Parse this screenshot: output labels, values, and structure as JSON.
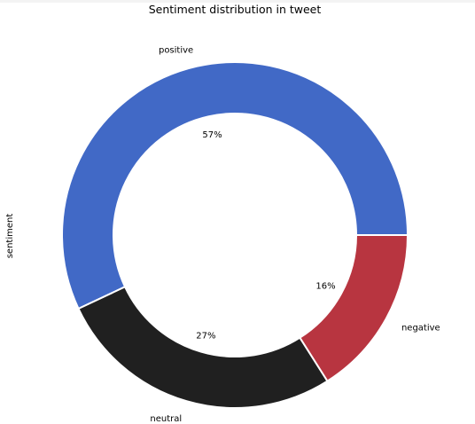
{
  "chart_data": {
    "type": "pie",
    "title": "Sentiment distribution in tweet",
    "ylabel": "sentiment",
    "donut": true,
    "slices": [
      {
        "label": "positive",
        "percent": 57,
        "pct_text": "57%",
        "color": "#4169c6"
      },
      {
        "label": "neutral",
        "percent": 27,
        "pct_text": "27%",
        "color": "#202020"
      },
      {
        "label": "negative",
        "percent": 16,
        "pct_text": "16%",
        "color": "#b83540"
      }
    ],
    "start_angle_deg": 0,
    "direction": "counterclockwise"
  }
}
